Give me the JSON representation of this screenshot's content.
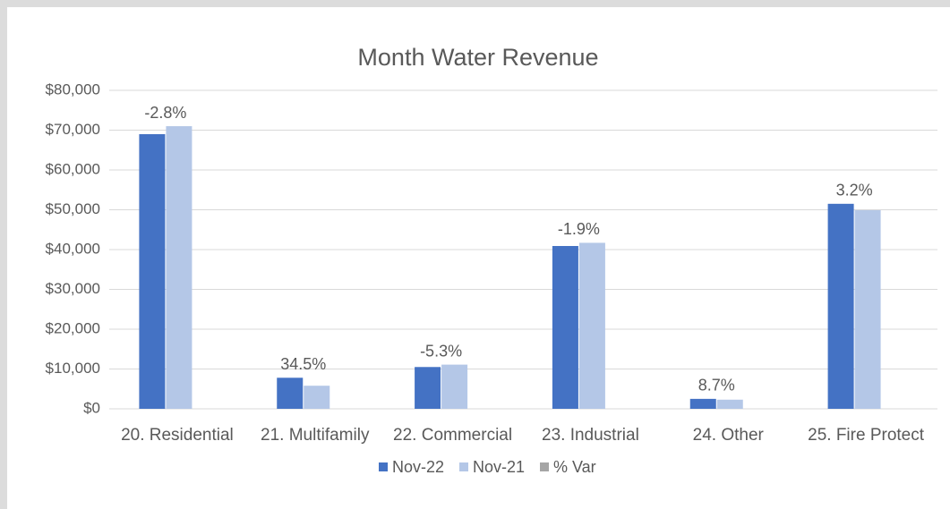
{
  "chart_data": {
    "type": "bar",
    "title": "Month Water Revenue",
    "categories": [
      "20. Residential",
      "21. Multifamily",
      "22. Commercial",
      "23. Industrial",
      "24. Other",
      "25. Fire Protect"
    ],
    "series": [
      {
        "name": "Nov-22",
        "color": "#4472c4",
        "values": [
          69000,
          7800,
          10500,
          40900,
          2500,
          51500
        ]
      },
      {
        "name": "Nov-21",
        "color": "#b4c7e7",
        "values": [
          71000,
          5800,
          11100,
          41700,
          2300,
          49900
        ]
      },
      {
        "name": "% Var",
        "color": "#a5a5a5",
        "values": [
          -2.8,
          34.5,
          -5.3,
          -1.9,
          8.7,
          3.2
        ],
        "value_labels": [
          "-2.8%",
          "34.5%",
          "-5.3%",
          "-1.9%",
          "8.7%",
          "3.2%"
        ]
      }
    ],
    "ylim": [
      0,
      80000
    ],
    "yticks": [
      {
        "value": 0,
        "label": "$0"
      },
      {
        "value": 10000,
        "label": "$10,000"
      },
      {
        "value": 20000,
        "label": "$20,000"
      },
      {
        "value": 30000,
        "label": "$30,000"
      },
      {
        "value": 40000,
        "label": "$40,000"
      },
      {
        "value": 50000,
        "label": "$50,000"
      },
      {
        "value": 60000,
        "label": "$60,000"
      },
      {
        "value": 70000,
        "label": "$70,000"
      },
      {
        "value": 80000,
        "label": "$80,000"
      }
    ],
    "grid": true,
    "legend": "bottom"
  }
}
